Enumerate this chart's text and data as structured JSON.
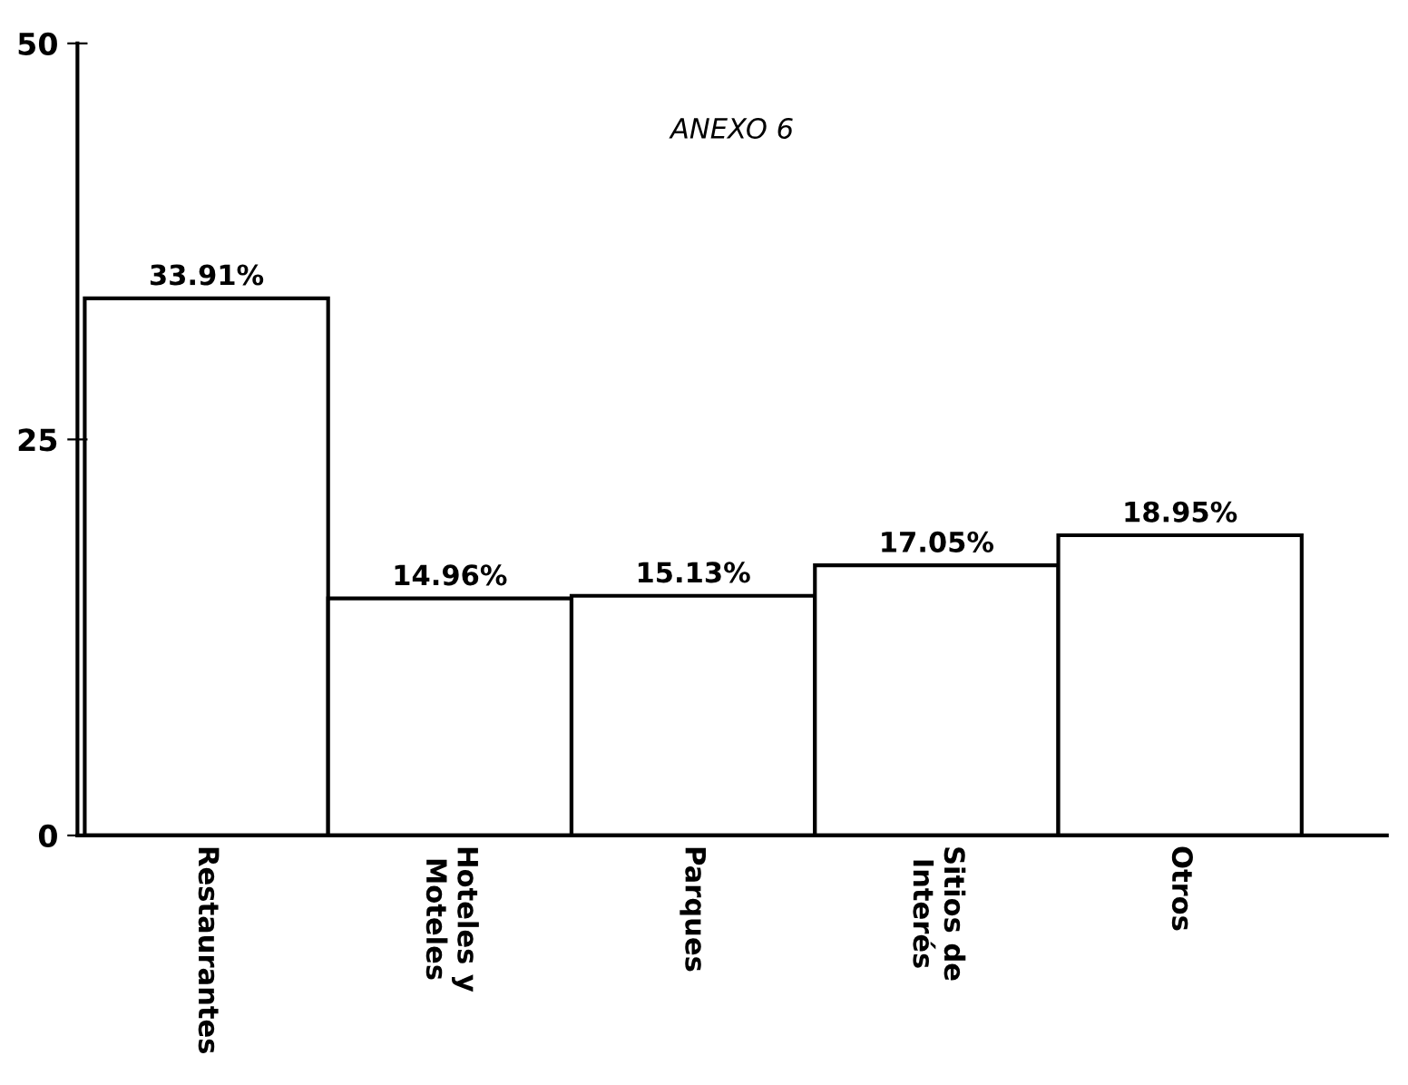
{
  "chart_data": {
    "type": "bar",
    "categories": [
      "Restaurantes",
      "Hoteles y\nMoteles",
      "Parques",
      "Sitios de\nInterés",
      "Otros"
    ],
    "values": [
      33.91,
      14.96,
      15.13,
      17.05,
      18.95
    ],
    "value_labels": [
      "33.91%",
      "14.96%",
      "15.13%",
      "17.05%",
      "18.95%"
    ],
    "color": "#ffffff",
    "ylim": [
      0,
      50
    ],
    "yticks": [
      0,
      25,
      50
    ],
    "annotations": [
      "ANEXO 6"
    ],
    "grid": false,
    "legend": false
  }
}
